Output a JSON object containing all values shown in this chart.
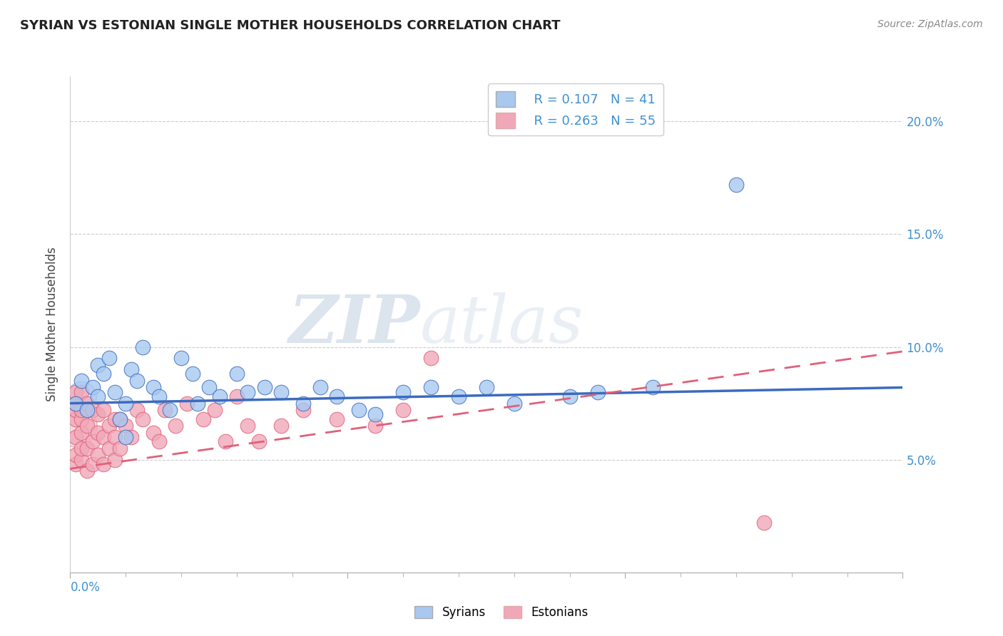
{
  "title": "SYRIAN VS ESTONIAN SINGLE MOTHER HOUSEHOLDS CORRELATION CHART",
  "source": "Source: ZipAtlas.com",
  "xlabel_syrians": "Syrians",
  "xlabel_estonians": "Estonians",
  "ylabel": "Single Mother Households",
  "xlim": [
    0.0,
    0.15
  ],
  "ylim": [
    0.0,
    0.22
  ],
  "xtick_positions": [
    0.0,
    0.05,
    0.1,
    0.15
  ],
  "xtick_labels_ends": [
    "0.0%",
    "15.0%"
  ],
  "ytick_positions": [
    0.05,
    0.1,
    0.15,
    0.2
  ],
  "ytick_labels": [
    "5.0%",
    "10.0%",
    "15.0%",
    "20.0%"
  ],
  "legend_R1": "R = 0.107",
  "legend_N1": "N = 41",
  "legend_R2": "R = 0.263",
  "legend_N2": "N = 55",
  "blue_color": "#a8c8f0",
  "pink_color": "#f0a8b8",
  "blue_line_color": "#3b6bbf",
  "pink_line_color": "#e0607a",
  "watermark_zip": "ZIP",
  "watermark_atlas": "atlas",
  "syrians_x": [
    0.001,
    0.002,
    0.003,
    0.004,
    0.005,
    0.005,
    0.006,
    0.007,
    0.008,
    0.009,
    0.01,
    0.01,
    0.011,
    0.012,
    0.013,
    0.015,
    0.016,
    0.018,
    0.02,
    0.022,
    0.023,
    0.025,
    0.027,
    0.03,
    0.032,
    0.035,
    0.038,
    0.042,
    0.045,
    0.048,
    0.052,
    0.055,
    0.06,
    0.065,
    0.07,
    0.075,
    0.08,
    0.09,
    0.095,
    0.105,
    0.12
  ],
  "syrians_y": [
    0.075,
    0.085,
    0.072,
    0.082,
    0.078,
    0.092,
    0.088,
    0.095,
    0.08,
    0.068,
    0.075,
    0.06,
    0.09,
    0.085,
    0.1,
    0.082,
    0.078,
    0.072,
    0.095,
    0.088,
    0.075,
    0.082,
    0.078,
    0.088,
    0.08,
    0.082,
    0.08,
    0.075,
    0.082,
    0.078,
    0.072,
    0.07,
    0.08,
    0.082,
    0.078,
    0.082,
    0.075,
    0.078,
    0.08,
    0.082,
    0.172
  ],
  "estonians_x": [
    0.001,
    0.001,
    0.001,
    0.001,
    0.001,
    0.001,
    0.001,
    0.002,
    0.002,
    0.002,
    0.002,
    0.002,
    0.002,
    0.003,
    0.003,
    0.003,
    0.003,
    0.004,
    0.004,
    0.004,
    0.005,
    0.005,
    0.005,
    0.006,
    0.006,
    0.006,
    0.007,
    0.007,
    0.008,
    0.008,
    0.008,
    0.009,
    0.009,
    0.01,
    0.011,
    0.012,
    0.013,
    0.015,
    0.016,
    0.017,
    0.019,
    0.021,
    0.024,
    0.026,
    0.028,
    0.03,
    0.032,
    0.034,
    0.038,
    0.042,
    0.048,
    0.055,
    0.06,
    0.065,
    0.125
  ],
  "estonians_y": [
    0.048,
    0.052,
    0.06,
    0.068,
    0.072,
    0.075,
    0.08,
    0.05,
    0.055,
    0.062,
    0.068,
    0.072,
    0.08,
    0.045,
    0.055,
    0.065,
    0.075,
    0.048,
    0.058,
    0.072,
    0.052,
    0.062,
    0.07,
    0.048,
    0.06,
    0.072,
    0.055,
    0.065,
    0.05,
    0.06,
    0.068,
    0.055,
    0.068,
    0.065,
    0.06,
    0.072,
    0.068,
    0.062,
    0.058,
    0.072,
    0.065,
    0.075,
    0.068,
    0.072,
    0.058,
    0.078,
    0.065,
    0.058,
    0.065,
    0.072,
    0.068,
    0.065,
    0.072,
    0.095,
    0.022
  ],
  "blue_line_y_start": 0.075,
  "blue_line_y_end": 0.082,
  "pink_line_y_start": 0.046,
  "pink_line_y_end": 0.098
}
